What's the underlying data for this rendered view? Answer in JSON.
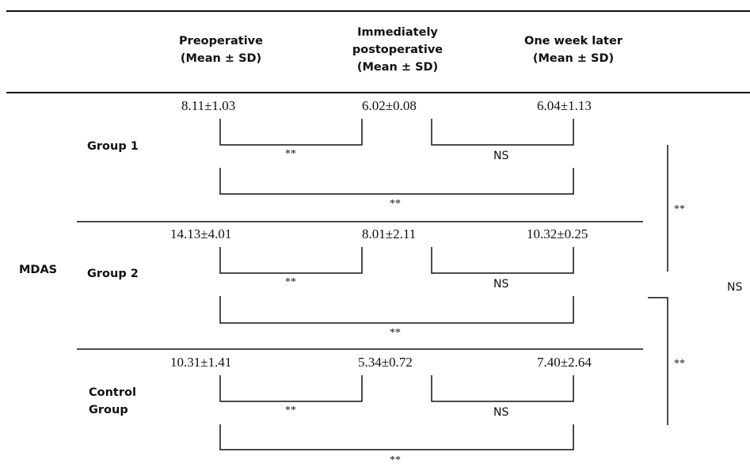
{
  "table": {
    "headers": {
      "preoperative": [
        "Preoperative",
        "(Mean ± SD)"
      ],
      "immediately": [
        "Immediately",
        "postoperative",
        "(Mean ± SD)"
      ],
      "one_week": [
        "One week later",
        "(Mean ± SD)"
      ]
    },
    "row_label": "MDAS",
    "groups": [
      {
        "name": [
          "Group 1"
        ],
        "preoperative": "8.11±1.03",
        "immediately": "6.02±0.08",
        "one_week": "6.04±1.13",
        "pre_vs_immediate": "**",
        "immediate_vs_week": "NS",
        "pre_vs_week": "**"
      },
      {
        "name": [
          "Group 2"
        ],
        "preoperative": "14.13±4.01",
        "immediately": "8.01±2.11",
        "one_week": "10.32±0.25",
        "pre_vs_immediate": "**",
        "immediate_vs_week": "NS",
        "pre_vs_week": "**"
      },
      {
        "name": [
          "Control",
          "Group"
        ],
        "preoperative": "10.31±1.41",
        "immediately": "5.34±0.72",
        "one_week": "7.40±2.64",
        "pre_vs_immediate": "**",
        "immediate_vs_week": "NS",
        "pre_vs_week": "**"
      }
    ],
    "between_groups": {
      "group1_vs_group2": "**",
      "group2_vs_control": "**",
      "group1_vs_control": "NS"
    }
  }
}
